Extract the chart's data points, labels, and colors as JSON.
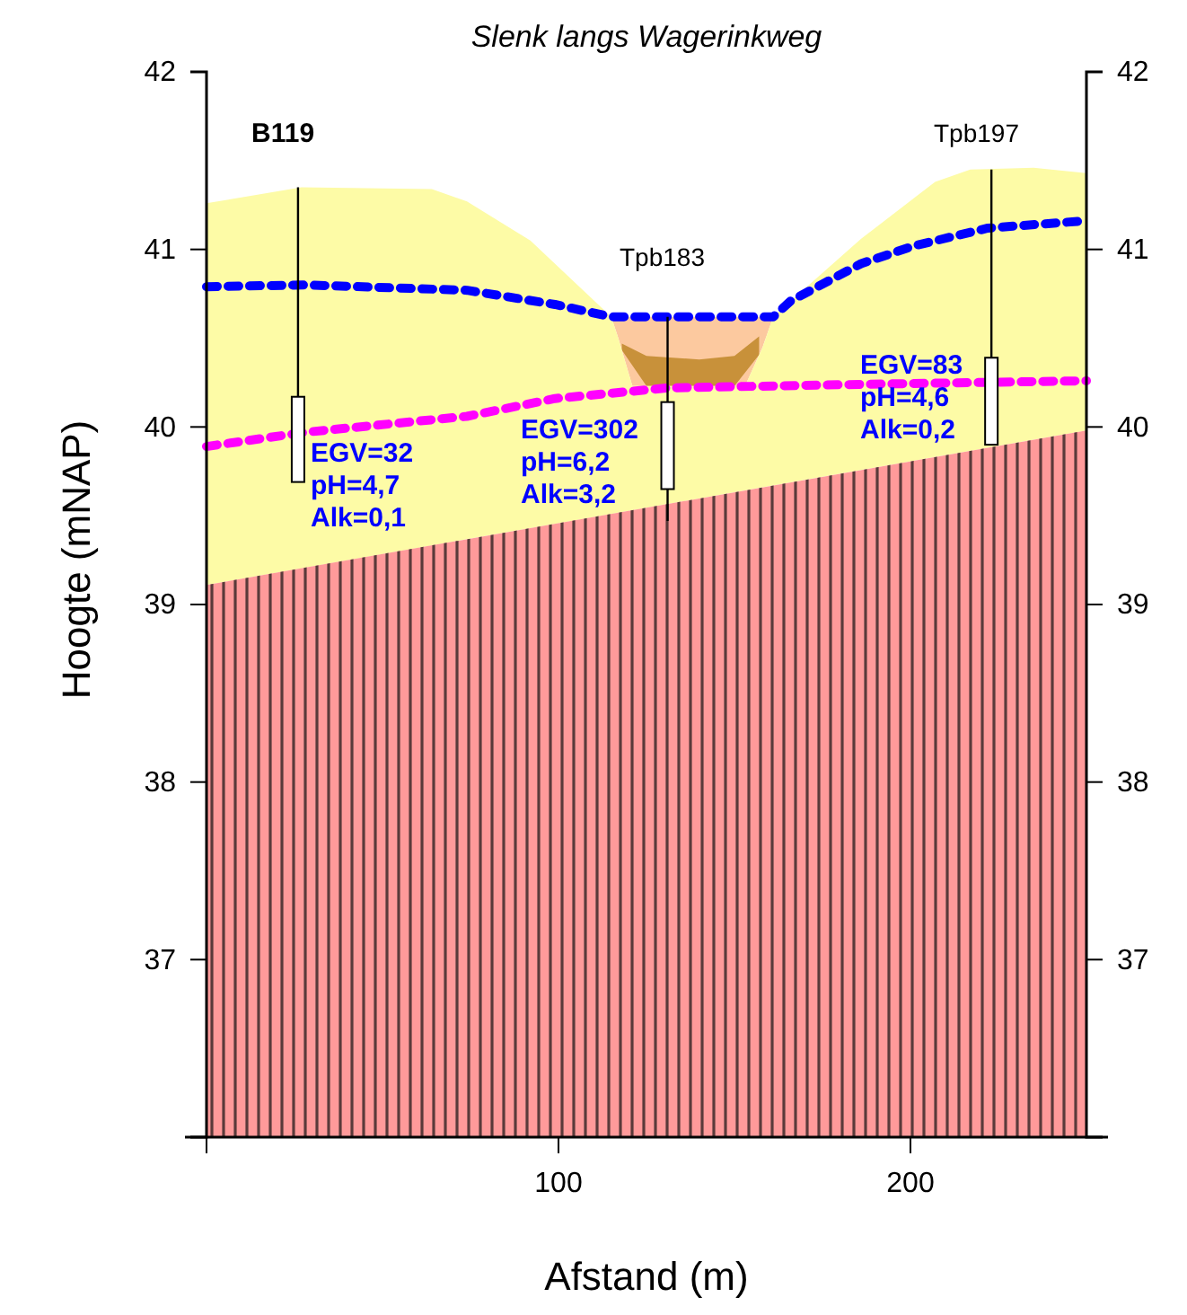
{
  "chart_data": {
    "type": "area",
    "title": "Slenk langs Wagerinkweg",
    "xlabel": "Afstand (m)",
    "ylabel": "Hoogte (mNAP)",
    "xlim": [
      0,
      250
    ],
    "xticks": [
      {
        "value": 0,
        "label": null
      },
      100,
      200
    ],
    "ylim": [
      36,
      42
    ],
    "yticks": [
      37,
      38,
      39,
      40,
      41,
      42
    ],
    "y2lim": [
      36,
      42
    ],
    "y2ticks": [
      37,
      38,
      39,
      40,
      41,
      42
    ],
    "grid": false,
    "series": [
      {
        "color": "#c8913a",
        "x": [
          118,
          125,
          140,
          150,
          157
        ],
        "values": [
          40.47,
          40.4,
          40.38,
          40.4,
          40.51
        ]
      },
      {
        "color": "#fdfba6",
        "x": [
          0,
          27,
          64,
          74,
          92,
          115,
          117,
          121,
          153,
          158,
          161,
          170,
          186,
          207,
          217,
          235,
          250
        ],
        "values": [
          41.26,
          41.35,
          41.34,
          41.27,
          41.05,
          40.62,
          40.5,
          40.23,
          40.23,
          40.45,
          40.62,
          40.78,
          41.06,
          41.38,
          41.45,
          41.46,
          41.43
        ]
      },
      {
        "color": "#ff9a9a",
        "x": [
          0,
          250
        ],
        "values": [
          39.11,
          39.98
        ]
      },
      {
        "type": "line",
        "color": "#ff00ff",
        "line_style": "dotted",
        "x": [
          0,
          28,
          74,
          99,
          131,
          186,
          250
        ],
        "values": [
          39.89,
          39.97,
          40.06,
          40.16,
          40.22,
          40.24,
          40.26
        ]
      },
      {
        "type": "line",
        "color": "#0000ff",
        "line_style": "dotted",
        "x": [
          0,
          28,
          74,
          99,
          115,
          161,
          166,
          186,
          201,
          222,
          249
        ],
        "values": [
          40.79,
          40.8,
          40.77,
          40.69,
          40.62,
          40.62,
          40.71,
          40.92,
          41.02,
          41.12,
          41.16
        ]
      },
      {
        "type": "line",
        "color": "#000000",
        "line_style": "solid",
        "x": [
          26,
          26,
          null,
          131,
          131,
          null,
          223,
          223
        ],
        "values": [
          41.35,
          39.69,
          null,
          40.62,
          39.47,
          null,
          41.45,
          39.9
        ]
      },
      {
        "type": "bar",
        "color": "#ffffff",
        "x": [
          26,
          131,
          223
        ],
        "base": [
          39.69,
          39.65,
          39.9
        ],
        "values": [
          0.48,
          0.49,
          0.49
        ]
      }
    ],
    "annotations": [
      "B119",
      "Tpb183",
      "Tpb197",
      "EGV=32\npH=4,7\nAlk=0,1",
      "EGV=302\npH=6,2\nAlk=3,2",
      "EGV=83\npH=4,6\nAlk=0,2"
    ]
  }
}
